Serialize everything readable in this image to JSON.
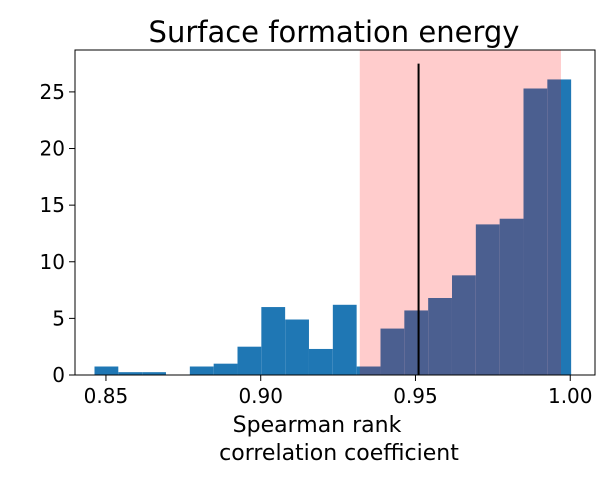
{
  "chart_data": {
    "type": "bar",
    "title": "Surface formation energy",
    "xlabel_line1": "Spearman rank",
    "xlabel_line2": "correlation coefficient",
    "ylabel": "",
    "xlim": [
      0.84,
      1.008
    ],
    "ylim": [
      0,
      28.7
    ],
    "bin_width": 0.00769,
    "bins": [
      {
        "x": 0.8463,
        "count": 0.75
      },
      {
        "x": 0.854,
        "count": 0.25
      },
      {
        "x": 0.8617,
        "count": 0.25
      },
      {
        "x": 0.8694,
        "count": 0.0
      },
      {
        "x": 0.8771,
        "count": 0.75
      },
      {
        "x": 0.8848,
        "count": 1.0
      },
      {
        "x": 0.8925,
        "count": 2.5
      },
      {
        "x": 0.9002,
        "count": 6.0
      },
      {
        "x": 0.9079,
        "count": 4.9
      },
      {
        "x": 0.9156,
        "count": 2.3
      },
      {
        "x": 0.9233,
        "count": 6.2
      },
      {
        "x": 0.931,
        "count": 0.75
      },
      {
        "x": 0.9387,
        "count": 4.1
      },
      {
        "x": 0.9464,
        "count": 5.7
      },
      {
        "x": 0.9541,
        "count": 6.8
      },
      {
        "x": 0.9618,
        "count": 8.8
      },
      {
        "x": 0.9695,
        "count": 13.3
      },
      {
        "x": 0.9772,
        "count": 13.8
      },
      {
        "x": 0.9849,
        "count": 25.3
      },
      {
        "x": 0.9926,
        "count": 26.1
      }
    ],
    "shaded_range": [
      0.932,
      0.997
    ],
    "median_line_x": 0.951,
    "median_line_top": 27.5,
    "x_ticks": [
      0.85,
      0.9,
      0.95,
      1.0
    ],
    "x_tick_labels": [
      "0.85",
      "0.90",
      "0.95",
      "1.00"
    ],
    "y_ticks": [
      0,
      5,
      10,
      15,
      20,
      25
    ],
    "y_tick_labels": [
      "0",
      "5",
      "10",
      "15",
      "20",
      "25"
    ],
    "colors": {
      "bar": "#1f77b4",
      "shade": "#ff0000",
      "median_line": "#000000"
    }
  }
}
